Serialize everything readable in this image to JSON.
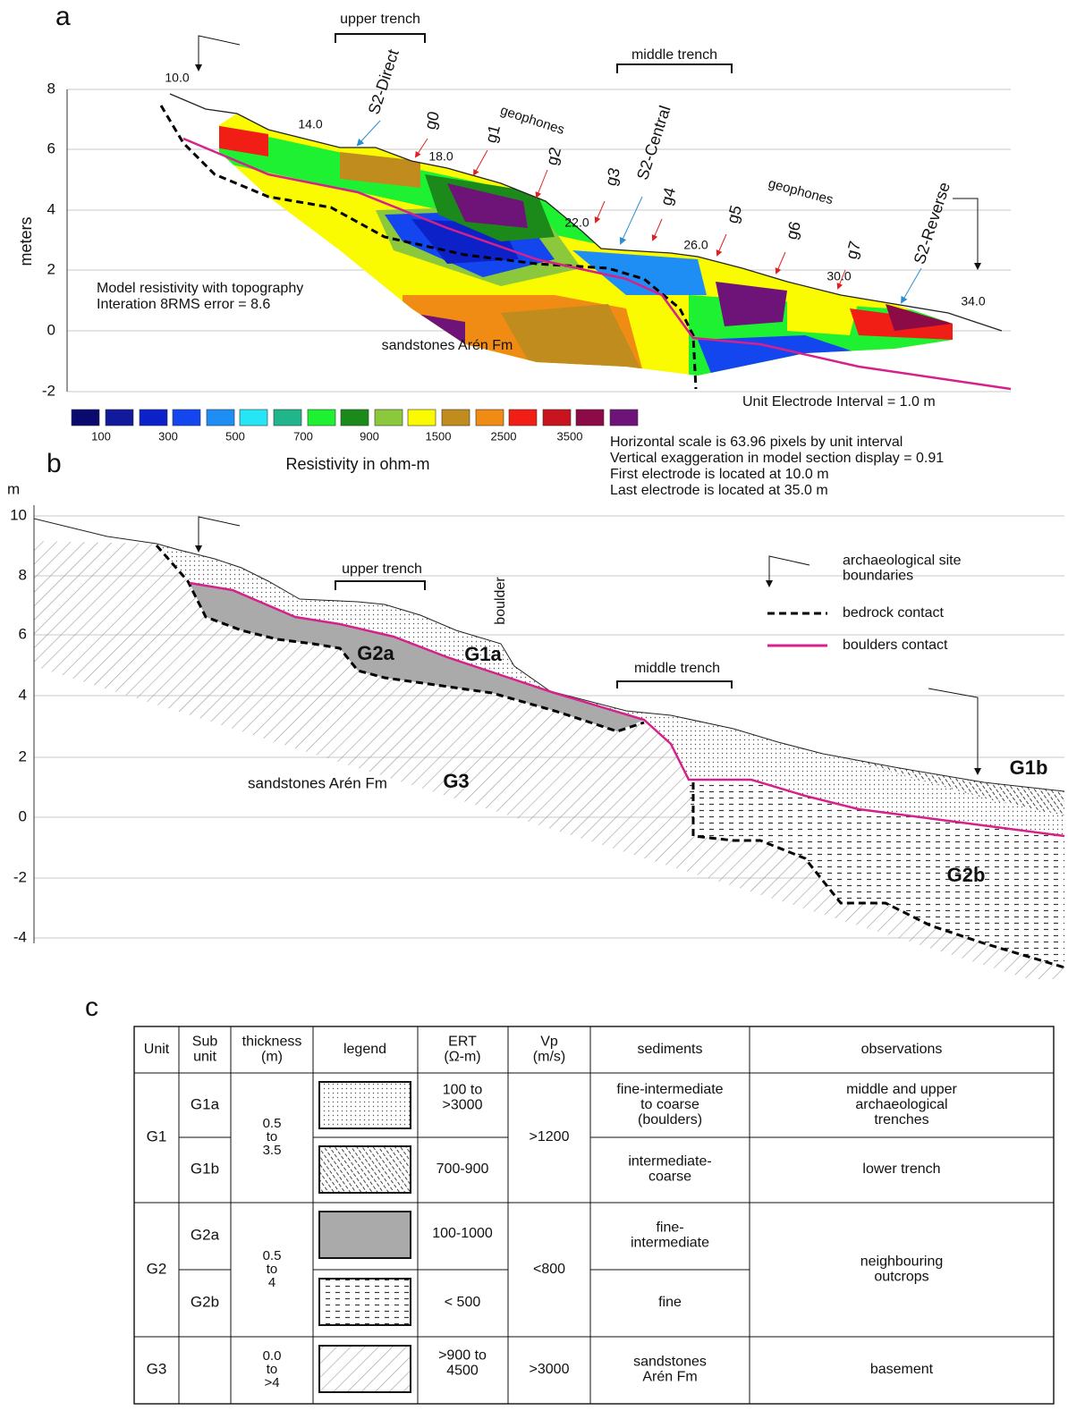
{
  "panel_a": {
    "label": "a",
    "y_label": "meters",
    "yticks": [
      "8",
      "6",
      "4",
      "2",
      "0",
      "-2"
    ],
    "x_labels": [
      "10.0",
      "14.0",
      "18.0",
      "22.0",
      "26.0",
      "30.0",
      "34.0"
    ],
    "upper_trench": "upper trench",
    "middle_trench": "middle trench",
    "s2_direct": "S2-Direct",
    "s2_central": "S2-Central",
    "s2_reverse": "S2-Reverse",
    "geophones": [
      "geophones",
      "geophones"
    ],
    "geophone_labels": [
      "g0",
      "g1",
      "g2",
      "g3",
      "g4",
      "g5",
      "g6",
      "g7"
    ],
    "model_title": [
      "Model resistivity with topography",
      "Interation 8RMS error = 8.6"
    ],
    "rock": "sandstones Arén Fm",
    "electrode_interval": "Unit Electrode Interval = 1.0 m",
    "colorbar_labels": [
      "100",
      "300",
      "500",
      "700",
      "900",
      "1500",
      "2500",
      "3500"
    ],
    "colorbar_title": "Resistivity in ohm-m",
    "notes": [
      "Horizontal scale is 63.96 pixels by unit interval",
      "Vertical exaggeration in model section display = 0.91",
      "First electrode is located at 10.0 m",
      "Last electrode is located at 35.0 m"
    ]
  },
  "panel_b": {
    "label": "b",
    "y_unit": "m",
    "yticks": [
      "10",
      "8",
      "6",
      "4",
      "2",
      "0",
      "-2",
      "-4"
    ],
    "upper_trench": "upper trench",
    "middle_trench": "middle trench",
    "boulder": "boulder",
    "unit_labels": [
      "G2a",
      "G1a",
      "G3",
      "G1b",
      "G2b"
    ],
    "rock": "sandstones  Arén Fm",
    "legend": {
      "site": [
        "archaeological site",
        "boundaries"
      ],
      "bedrock": "bedrock contact",
      "boulders": "boulders contact"
    }
  },
  "panel_c": {
    "label": "c",
    "headers": [
      [
        "Unit"
      ],
      [
        "Sub",
        "unit"
      ],
      [
        "thickness",
        "(m)"
      ],
      [
        "legend"
      ],
      [
        "ERT",
        "(Ω-m)"
      ],
      [
        "Vp",
        "(m/s)"
      ],
      [
        "sediments"
      ],
      [
        "observations"
      ]
    ],
    "unit": [
      "G1",
      "G2",
      "G3"
    ],
    "sub_unit": [
      "G1a",
      "G1b",
      "G2a",
      "G2b"
    ],
    "thickness": [
      [
        "0.5",
        "to",
        "3.5"
      ],
      [
        "0.5",
        "to",
        "4"
      ],
      [
        "0.0",
        "to",
        ">4"
      ]
    ],
    "ert": [
      [
        "100 to",
        ">3000"
      ],
      [
        "700-900"
      ],
      [
        "100-1000"
      ],
      [
        "< 500"
      ],
      [
        ">900 to",
        "4500"
      ]
    ],
    "vp": [
      ">1200",
      "<800",
      ">3000"
    ],
    "sediments": [
      [
        "fine-intermediate",
        "to coarse",
        "(boulders)"
      ],
      [
        "intermediate-",
        "coarse"
      ],
      [
        "fine-",
        "intermediate"
      ],
      [
        "fine"
      ],
      [
        "sandstones",
        "Arén Fm"
      ]
    ],
    "observations": [
      [
        "middle and upper",
        "archaeological",
        "trenches"
      ],
      [
        "lower trench"
      ],
      [
        "neighbouring",
        "outcrops"
      ],
      [
        "basement"
      ]
    ]
  }
}
